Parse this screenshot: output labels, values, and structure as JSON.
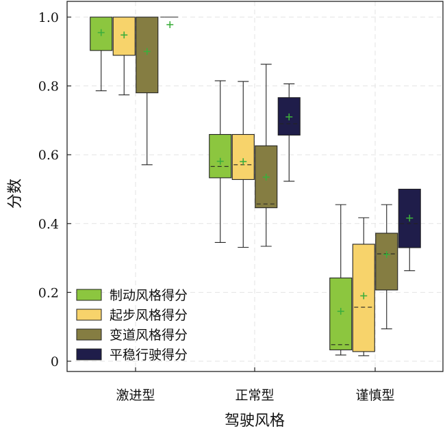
{
  "chart_data": {
    "type": "box",
    "xlabel": "驾驶风格",
    "ylabel": "分数",
    "ylim": [
      0,
      1.0
    ],
    "grid": true,
    "legend_position": "bottom-left",
    "categories": [
      "激进型",
      "正常型",
      "谨慎型"
    ],
    "y_ticks": [
      {
        "value": 0,
        "label": "0"
      },
      {
        "value": 0.2,
        "label": "0.2"
      },
      {
        "value": 0.4,
        "label": "0.4"
      },
      {
        "value": 0.6,
        "label": "0.6"
      },
      {
        "value": 0.8,
        "label": "0.8"
      },
      {
        "value": 1.0,
        "label": "1.0"
      }
    ],
    "series": [
      {
        "name": "制动风格得分",
        "color": "#8cc63f",
        "boxes": [
          {
            "min": 0.786,
            "q1": 0.903,
            "median": 1.0,
            "q3": 1.0,
            "max": 1.0,
            "mean": 0.955
          },
          {
            "min": 0.345,
            "q1": 0.533,
            "median": 0.566,
            "q3": 0.659,
            "max": 0.815,
            "mean": 0.581
          },
          {
            "min": 0.018,
            "q1": 0.033,
            "median": 0.048,
            "q3": 0.242,
            "max": 0.455,
            "mean": 0.145
          }
        ]
      },
      {
        "name": "起步风格得分",
        "color": "#f7d36b",
        "boxes": [
          {
            "min": 0.774,
            "q1": 0.889,
            "median": 1.0,
            "q3": 1.0,
            "max": 1.0,
            "mean": 0.948
          },
          {
            "min": 0.331,
            "q1": 0.528,
            "median": 0.571,
            "q3": 0.659,
            "max": 0.813,
            "mean": 0.58
          },
          {
            "min": 0.016,
            "q1": 0.028,
            "median": 0.157,
            "q3": 0.34,
            "max": 0.417,
            "mean": 0.19
          }
        ]
      },
      {
        "name": "变道风格得分",
        "color": "#857d42",
        "boxes": [
          {
            "min": 0.571,
            "q1": 0.78,
            "median": 1.0,
            "q3": 1.0,
            "max": 1.0,
            "mean": 0.9
          },
          {
            "min": 0.334,
            "q1": 0.446,
            "median": 0.457,
            "q3": 0.626,
            "max": 0.863,
            "mean": 0.535
          },
          {
            "min": 0.094,
            "q1": 0.207,
            "median": 0.312,
            "q3": 0.372,
            "max": 0.455,
            "mean": 0.31
          }
        ]
      },
      {
        "name": "平稳行驶得分",
        "color": "#1f1d4a",
        "boxes": [
          {
            "min": 1.0,
            "q1": 1.0,
            "median": 1.0,
            "q3": 1.0,
            "max": 1.0,
            "mean": 0.978
          },
          {
            "min": 0.523,
            "q1": 0.657,
            "median": 0.69,
            "q3": 0.766,
            "max": 0.806,
            "mean": 0.71
          },
          {
            "min": 0.263,
            "q1": 0.33,
            "median": 0.4,
            "q3": 0.5,
            "max": 0.5,
            "mean": 0.416
          }
        ]
      }
    ]
  }
}
